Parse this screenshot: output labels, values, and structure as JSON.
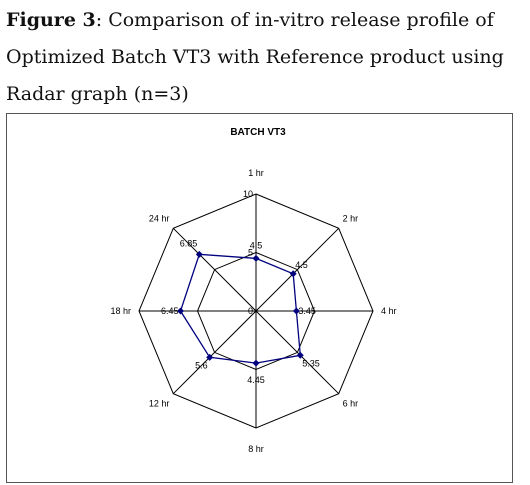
{
  "caption": {
    "figure_label": "Figure 3",
    "text": ": Comparison of in-vitro release profile of Optimized Batch VT3 with Reference product using Radar graph (n=3)"
  },
  "chart_data": {
    "type": "radar",
    "title": "BATCH VT3",
    "categories": [
      "1 hr",
      "2 hr",
      "4 hr",
      "6 hr",
      "8 hr",
      "12 hr",
      "18 hr",
      "24 hr"
    ],
    "series": [
      {
        "name": "",
        "values": [
          4.5,
          4.5,
          3.45,
          5.35,
          4.45,
          5.6,
          6.45,
          6.85
        ],
        "color": "#00007f"
      }
    ],
    "value_labels": [
      "4.5",
      "4.5",
      "3.45",
      "5.35",
      "4.45",
      "5.6",
      "6.45",
      "6.85"
    ],
    "radial_ticks": [
      "0",
      "5",
      "10"
    ],
    "rmax": 10,
    "grid_color": "#000000"
  }
}
